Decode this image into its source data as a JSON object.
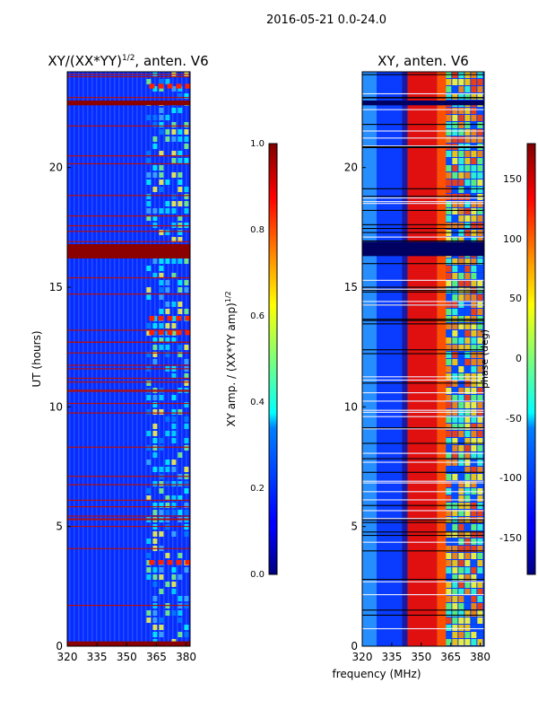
{
  "figure": {
    "suptitle": "2016-05-21 0.0-24.0",
    "xlabel": "frequency (MHz)"
  },
  "chart_data": [
    {
      "type": "heatmap",
      "title_main": "XY/(XX*YY)",
      "title_exp": "1/2",
      "title_tail": ", anten. V6",
      "xlabel": "frequency (MHz)",
      "ylabel": "UT (hours)",
      "xlim": [
        320,
        382
      ],
      "ylim": [
        0,
        24
      ],
      "xticks": [
        "320",
        "335",
        "350",
        "365",
        "380"
      ],
      "yticks": [
        "0",
        "5",
        "10",
        "15",
        "20"
      ],
      "colorbar": {
        "label_main": "XY amp. / (XX*YY amp)",
        "label_exp": "1/2",
        "range": [
          0.0,
          1.0
        ],
        "ticks": [
          "0.0",
          "0.2",
          "0.4",
          "0.6",
          "0.8",
          "1.0"
        ]
      },
      "flagged_hours": [
        [
          16.2,
          16.8
        ],
        [
          22.6,
          22.8
        ],
        [
          0.0,
          0.2
        ]
      ],
      "bright_band_mhz": [
        360,
        382
      ]
    },
    {
      "type": "heatmap",
      "title": "XY, anten. V6",
      "xlabel": "frequency (MHz)",
      "xlim": [
        320,
        382
      ],
      "ylim": [
        0,
        24
      ],
      "xticks": [
        "320",
        "335",
        "350",
        "365",
        "380"
      ],
      "yticks": [
        "0",
        "5",
        "10",
        "15",
        "20"
      ],
      "colorbar": {
        "label": "phase (deg)",
        "range": [
          -180,
          180
        ],
        "ticks": [
          "-150",
          "-100",
          "-50",
          "0",
          "50",
          "100",
          "150"
        ]
      },
      "flagged_hours": [
        [
          16.3,
          16.9
        ],
        [
          22.6,
          22.8
        ]
      ],
      "phase_ramp_mhz": [
        343,
        358
      ]
    }
  ]
}
